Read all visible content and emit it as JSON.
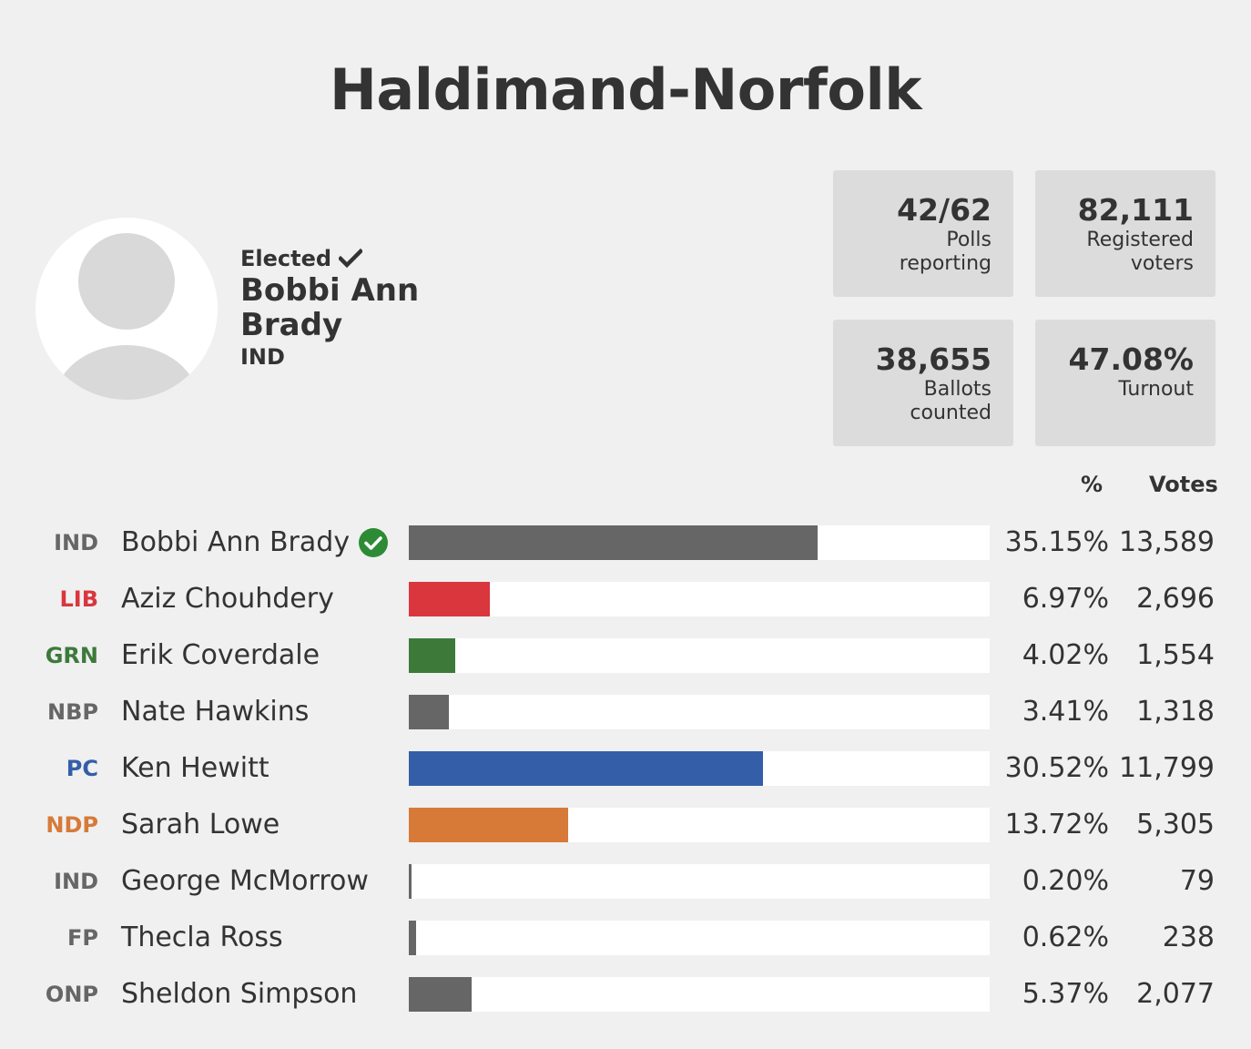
{
  "title": "Haldimand-Norfolk",
  "winner": {
    "status": "Elected",
    "name_line1": "Bobbi Ann",
    "name_line2": "Brady",
    "party": "IND"
  },
  "stats": [
    {
      "value": "42/62",
      "label_line1": "Polls",
      "label_line2": "reporting"
    },
    {
      "value": "82,111",
      "label_line1": "Registered",
      "label_line2": "voters"
    },
    {
      "value": "38,655",
      "label_line1": "Ballots",
      "label_line2": "counted"
    },
    {
      "value": "47.08%",
      "label_line1": "Turnout",
      "label_line2": ""
    }
  ],
  "columns": {
    "pct": "%",
    "votes": "Votes"
  },
  "colors": {
    "IND": "#666666",
    "LIB": "#d9363e",
    "GRN": "#3d7a3a",
    "NBP": "#666666",
    "PC": "#345ea8",
    "NDP": "#d77a38",
    "FP": "#666666",
    "ONP": "#666666",
    "elected_check": "#2e8b35"
  },
  "chart_data": {
    "type": "bar",
    "orientation": "horizontal",
    "xlim": [
      0,
      50
    ],
    "rows": [
      {
        "party": "IND",
        "party_color": "#666666",
        "candidate": "Bobbi Ann Brady",
        "elected": true,
        "bar_color": "#666666",
        "pct_value": 35.15,
        "pct": "35.15%",
        "votes": "13,589"
      },
      {
        "party": "LIB",
        "party_color": "#d9363e",
        "candidate": "Aziz Chouhdery",
        "elected": false,
        "bar_color": "#d9363e",
        "pct_value": 6.97,
        "pct": "6.97%",
        "votes": "2,696"
      },
      {
        "party": "GRN",
        "party_color": "#3d7a3a",
        "candidate": "Erik Coverdale",
        "elected": false,
        "bar_color": "#3d7a3a",
        "pct_value": 4.02,
        "pct": "4.02%",
        "votes": "1,554"
      },
      {
        "party": "NBP",
        "party_color": "#666666",
        "candidate": "Nate Hawkins",
        "elected": false,
        "bar_color": "#666666",
        "pct_value": 3.41,
        "pct": "3.41%",
        "votes": "1,318"
      },
      {
        "party": "PC",
        "party_color": "#345ea8",
        "candidate": "Ken Hewitt",
        "elected": false,
        "bar_color": "#345ea8",
        "pct_value": 30.52,
        "pct": "30.52%",
        "votes": "11,799"
      },
      {
        "party": "NDP",
        "party_color": "#d77a38",
        "candidate": "Sarah Lowe",
        "elected": false,
        "bar_color": "#d77a38",
        "pct_value": 13.72,
        "pct": "13.72%",
        "votes": "5,305"
      },
      {
        "party": "IND",
        "party_color": "#666666",
        "candidate": "George McMorrow",
        "elected": false,
        "bar_color": "#666666",
        "pct_value": 0.2,
        "pct": "0.20%",
        "votes": "79"
      },
      {
        "party": "FP",
        "party_color": "#666666",
        "candidate": "Thecla Ross",
        "elected": false,
        "bar_color": "#666666",
        "pct_value": 0.62,
        "pct": "0.62%",
        "votes": "238"
      },
      {
        "party": "ONP",
        "party_color": "#666666",
        "candidate": "Sheldon Simpson",
        "elected": false,
        "bar_color": "#666666",
        "pct_value": 5.37,
        "pct": "5.37%",
        "votes": "2,077"
      }
    ]
  }
}
